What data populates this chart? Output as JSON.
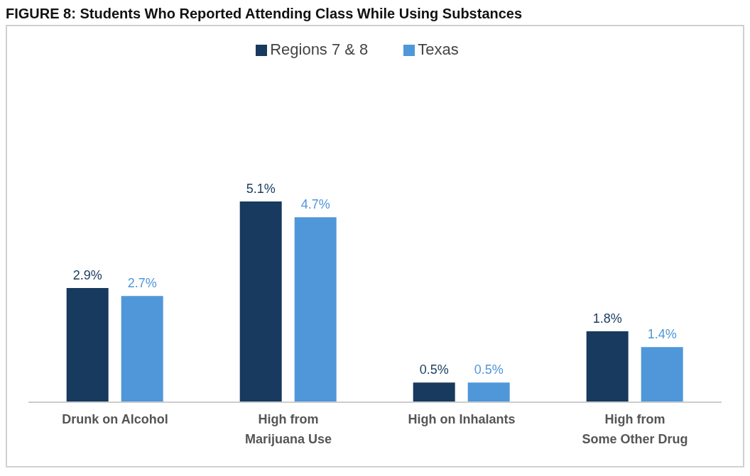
{
  "chart_data": {
    "type": "bar",
    "title": "FIGURE 8: Students Who Reported Attending Class While Using Substances",
    "categories": [
      "Drunk on Alcohol",
      "High from\nMarijuana Use",
      "High on Inhalants",
      "High from\nSome Other Drug"
    ],
    "series": [
      {
        "name": "Regions 7 & 8",
        "color": "#173a5e",
        "values": [
          2.9,
          5.1,
          0.5,
          1.8
        ],
        "value_labels": [
          "2.9%",
          "5.1%",
          "0.5%",
          "1.8%"
        ]
      },
      {
        "name": "Texas",
        "color": "#4f97d9",
        "values": [
          2.7,
          4.7,
          0.5,
          1.4
        ],
        "value_labels": [
          "2.7%",
          "4.7%",
          "0.5%",
          "1.4%"
        ]
      }
    ],
    "legend": "top",
    "grid": false
  }
}
